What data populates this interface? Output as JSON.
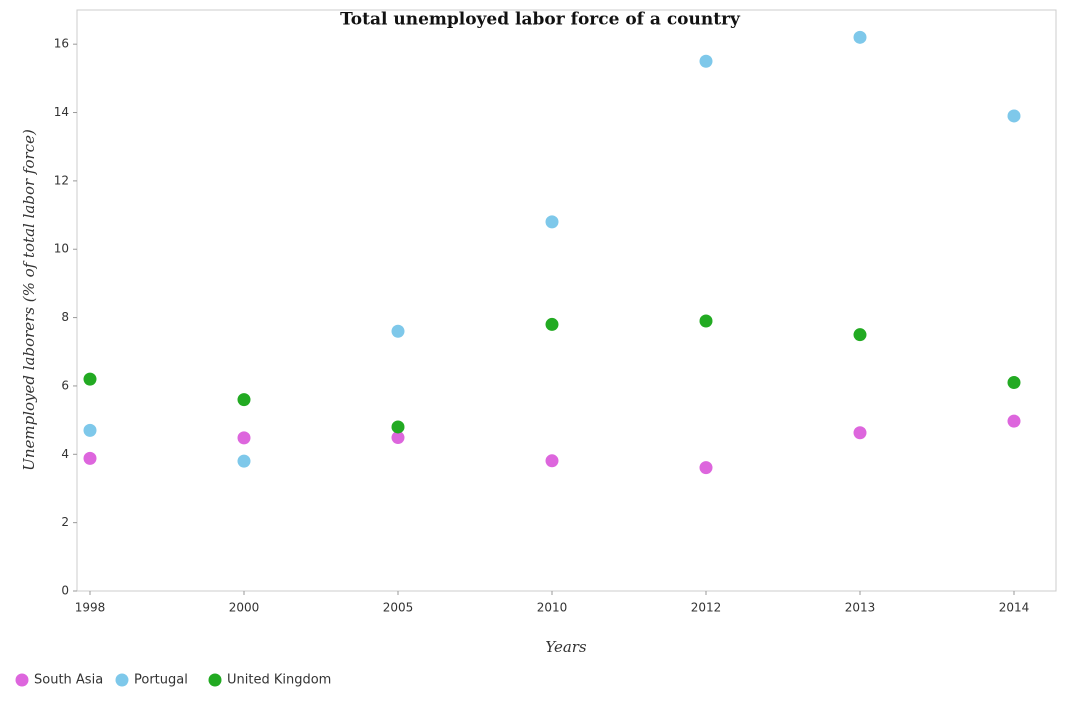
{
  "chart_data": {
    "type": "scatter",
    "title": "Total unemployed labor force of a country",
    "xlabel": "Years",
    "ylabel": "Unemployed laborers (% of total labor force)",
    "categories": [
      "1998",
      "2000",
      "2005",
      "2010",
      "2012",
      "2013",
      "2014"
    ],
    "series": [
      {
        "name": "South Asia",
        "color": "#dd66dd",
        "values": [
          3.88,
          4.48,
          4.49,
          3.81,
          3.61,
          4.63,
          4.97
        ]
      },
      {
        "name": "Portugal",
        "color": "#7ec8ea",
        "values": [
          4.7,
          3.8,
          7.6,
          10.8,
          15.5,
          16.2,
          13.9
        ]
      },
      {
        "name": "United Kingdom",
        "color": "#22aa22",
        "values": [
          6.2,
          5.6,
          4.8,
          7.8,
          7.9,
          7.5,
          6.1
        ]
      }
    ],
    "ylim": [
      0,
      17
    ],
    "yticks": [
      0,
      2,
      4,
      6,
      8,
      10,
      12,
      14,
      16
    ],
    "grid": false,
    "legend": "bottom-left"
  }
}
